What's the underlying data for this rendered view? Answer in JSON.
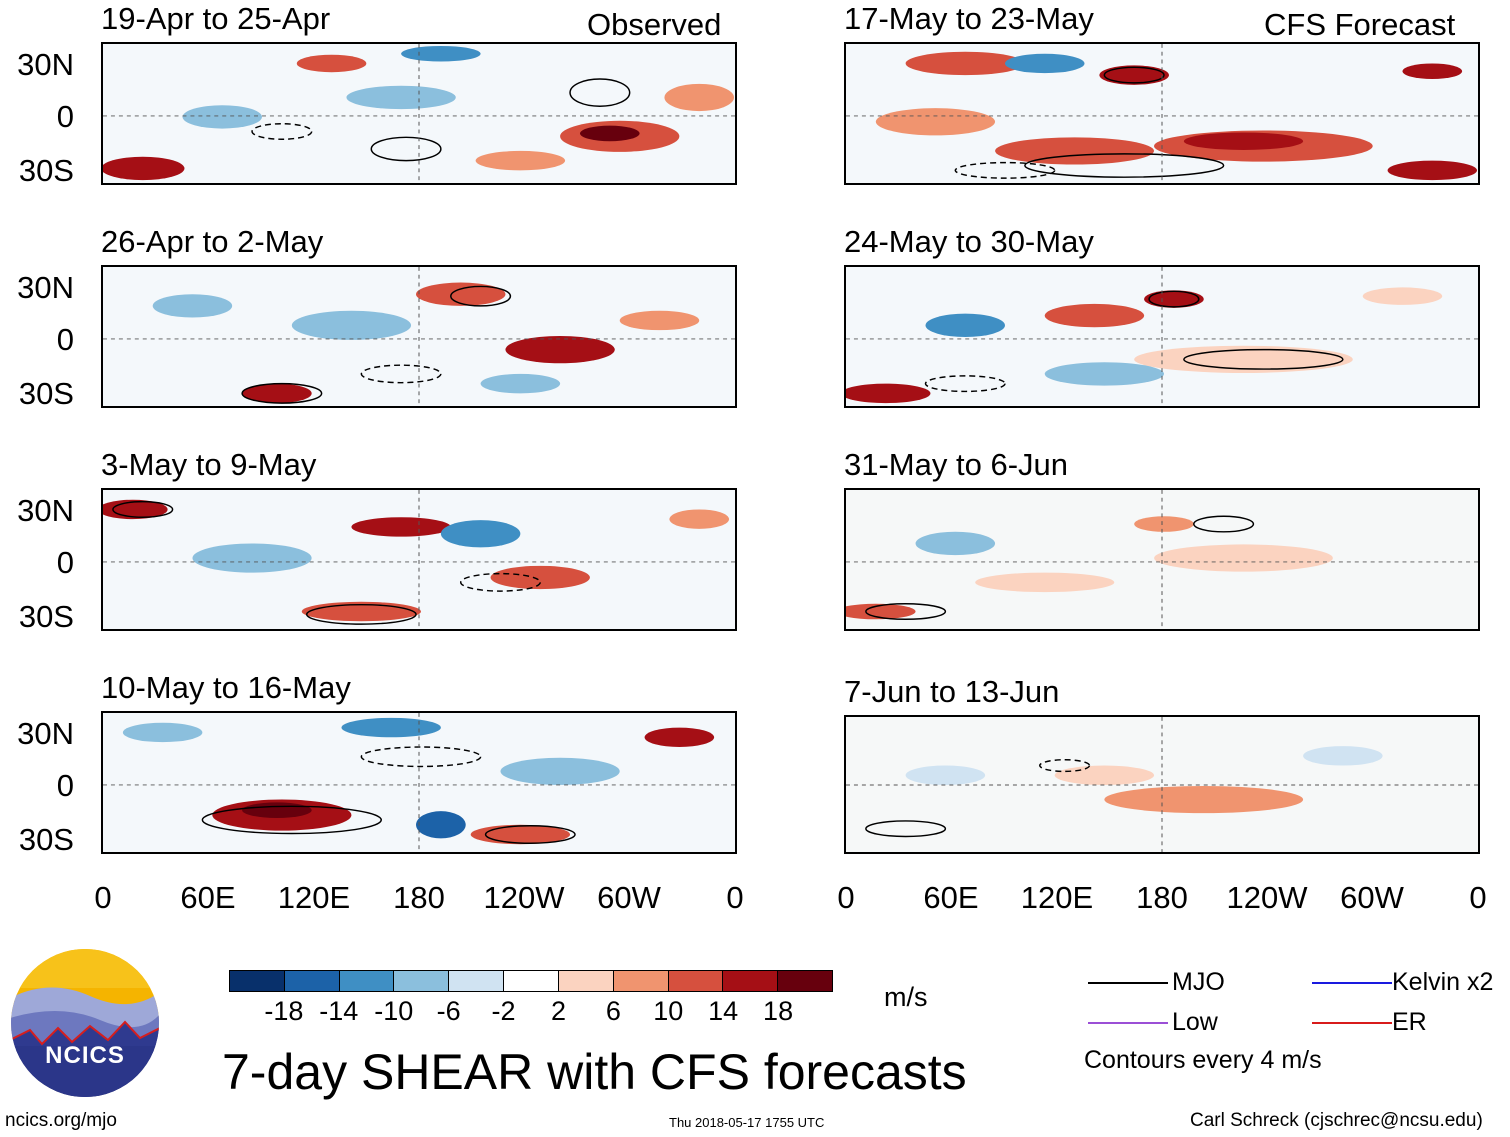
{
  "header": {
    "observed_label": "Observed",
    "forecast_label": "CFS Forecast"
  },
  "panels": {
    "left": [
      {
        "title": "19-Apr to 25-Apr"
      },
      {
        "title": "26-Apr to 2-May"
      },
      {
        "title": "3-May to 9-May"
      },
      {
        "title": "10-May to 16-May"
      }
    ],
    "right": [
      {
        "title": "17-May to 23-May"
      },
      {
        "title": "24-May to 30-May"
      },
      {
        "title": "31-May to 6-Jun"
      },
      {
        "title": "7-Jun to 13-Jun"
      }
    ]
  },
  "lat_labels": [
    "30N",
    "0",
    "30S"
  ],
  "lon_labels": [
    "0",
    "60E",
    "120E",
    "180",
    "120W",
    "60W",
    "0"
  ],
  "colorbar": {
    "ticks": [
      "-18",
      "-14",
      "-10",
      "-6",
      "-2",
      "2",
      "6",
      "10",
      "14",
      "18"
    ],
    "colors": [
      "#08306b",
      "#1c62a8",
      "#3f8fc4",
      "#8bbfdd",
      "#d0e3f2",
      "#ffffff",
      "#fbd3c0",
      "#f0946f",
      "#d6503e",
      "#a50f15",
      "#67000d"
    ],
    "unit": "m/s"
  },
  "legend": {
    "mjo": "MJO",
    "kelvin": "Kelvin x2",
    "low": "Low",
    "er": "ER",
    "contours_note": "Contours every 4 m/s",
    "colors": {
      "mjo": "#000000",
      "kelvin": "#1a1adf",
      "low": "#9b4fd6",
      "er": "#d81b1b"
    }
  },
  "title": "7-day SHEAR with CFS forecasts",
  "logo": {
    "text": "NCICS"
  },
  "footer": {
    "url": "ncics.org/mjo",
    "timestamp": "Thu 2018-05-17 1755 UTC",
    "credit": "Carl Schreck (cjschrec@ncsu.edu)"
  }
}
